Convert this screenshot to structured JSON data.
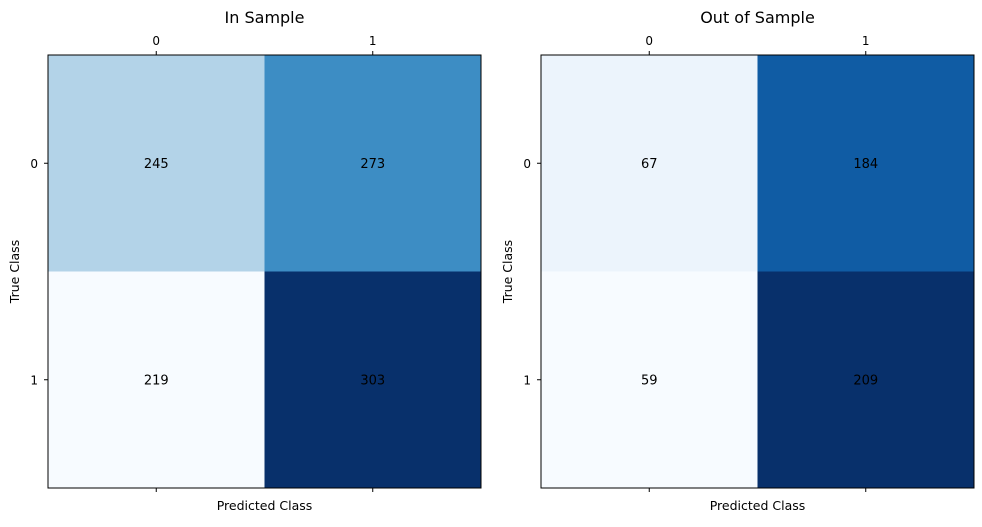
{
  "chart_data": [
    {
      "type": "heatmap",
      "title": "In Sample",
      "xlabel": "Predicted Class",
      "ylabel": "True Class",
      "x_categories": [
        "0",
        "1"
      ],
      "y_categories": [
        "0",
        "1"
      ],
      "values": [
        [
          245,
          273
        ],
        [
          219,
          303
        ]
      ],
      "colormap": "Blues",
      "x_ticks_position": "top",
      "grid": false
    },
    {
      "type": "heatmap",
      "title": "Out of Sample",
      "xlabel": "Predicted Class",
      "ylabel": "True Class",
      "x_categories": [
        "0",
        "1"
      ],
      "y_categories": [
        "0",
        "1"
      ],
      "values": [
        [
          67,
          184
        ],
        [
          59,
          209
        ]
      ],
      "colormap": "Blues",
      "x_ticks_position": "top",
      "grid": false
    }
  ],
  "colors": {
    "blues_stops": [
      "#f7fbff",
      "#deebf7",
      "#c6dbef",
      "#9ecae1",
      "#6baed6",
      "#4292c6",
      "#2171b5",
      "#08519c",
      "#08306b"
    ],
    "frame": "#000000"
  }
}
